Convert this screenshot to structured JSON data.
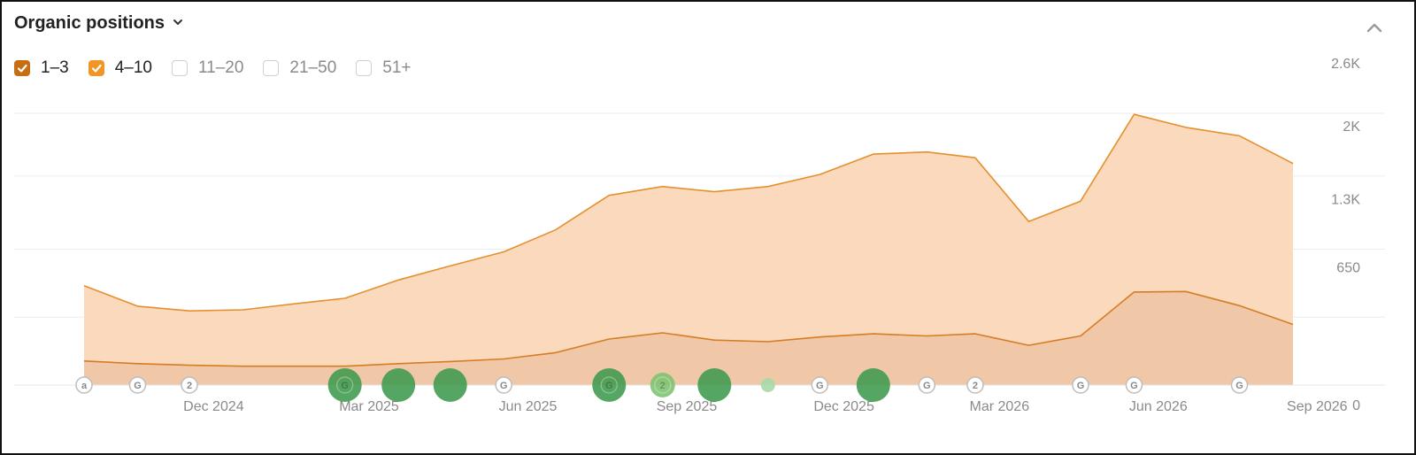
{
  "header": {
    "title": "Organic positions"
  },
  "filters": [
    {
      "label": "1–3",
      "checked": true,
      "color": "#c86e12"
    },
    {
      "label": "4–10",
      "checked": true,
      "color": "#f29527"
    },
    {
      "label": "11–20",
      "checked": false
    },
    {
      "label": "21–50",
      "checked": false
    },
    {
      "label": "51+",
      "checked": false
    }
  ],
  "icons": {
    "title_dropdown": "chevron-down-icon",
    "collapse": "chevron-up-icon"
  },
  "colors": {
    "area_4_10": "#fbd9bc",
    "area_1_3": "#f0c8a8",
    "line": "#e5902f",
    "marker_green": "#3d9a4d"
  },
  "chart_data": {
    "type": "area",
    "stacked": true,
    "x": [
      "2024-10-01",
      "2024-11-01",
      "2024-12-01",
      "2025-01-01",
      "2025-02-01",
      "2025-03-01",
      "2025-04-01",
      "2025-05-01",
      "2025-06-01",
      "2025-07-01",
      "2025-08-01",
      "2025-09-01",
      "2025-10-01",
      "2025-11-01",
      "2025-12-01",
      "2026-01-01",
      "2026-02-01",
      "2026-03-01",
      "2026-04-01",
      "2026-05-01",
      "2026-06-01",
      "2026-07-01",
      "2026-08-01",
      "2026-09-01"
    ],
    "series": [
      {
        "name": "1–3",
        "values": [
          230,
          205,
          190,
          180,
          180,
          180,
          205,
          225,
          250,
          310,
          440,
          500,
          430,
          415,
          460,
          490,
          470,
          490,
          380,
          470,
          890,
          895,
          760,
          580
        ]
      },
      {
        "name": "4–10",
        "values": [
          720,
          550,
          520,
          540,
          600,
          650,
          800,
          915,
          1025,
          1175,
          1375,
          1400,
          1420,
          1485,
          1555,
          1720,
          1760,
          1685,
          1185,
          1290,
          1700,
          1570,
          1625,
          1540
        ]
      }
    ],
    "x_ticks": [
      "Dec 2024",
      "Mar 2025",
      "Jun 2025",
      "Sep 2025",
      "Dec 2025",
      "Mar 2026",
      "Jun 2026",
      "Sep 2026"
    ],
    "y_ticks": [
      "0",
      "650",
      "1.3K",
      "2K",
      "2.6K"
    ],
    "ylim": [
      0,
      2600
    ],
    "grid": true,
    "y_axis_position": "right",
    "event_markers": [
      {
        "date": "2024-10-01",
        "label": "a",
        "kind": "letter"
      },
      {
        "date": "2024-11-01",
        "label": "G",
        "kind": "letter"
      },
      {
        "date": "2024-12-01",
        "label": "2",
        "kind": "letter"
      },
      {
        "date": "2025-03-01",
        "label": "G",
        "kind": "bubble",
        "size": "large"
      },
      {
        "date": "2025-04-01",
        "kind": "bubble",
        "size": "large"
      },
      {
        "date": "2025-05-01",
        "kind": "bubble",
        "size": "large"
      },
      {
        "date": "2025-06-01",
        "label": "G",
        "kind": "letter"
      },
      {
        "date": "2025-08-01",
        "label": "G",
        "kind": "bubble",
        "size": "large"
      },
      {
        "date": "2025-09-01",
        "label": "2",
        "kind": "bubble",
        "size": "medium"
      },
      {
        "date": "2025-10-01",
        "kind": "bubble",
        "size": "large"
      },
      {
        "date": "2025-11-01",
        "kind": "bubble",
        "size": "small"
      },
      {
        "date": "2025-12-01",
        "label": "G",
        "kind": "letter"
      },
      {
        "date": "2026-01-01",
        "kind": "bubble",
        "size": "large"
      },
      {
        "date": "2026-02-01",
        "label": "G",
        "kind": "letter"
      },
      {
        "date": "2026-03-01",
        "label": "2",
        "kind": "letter"
      },
      {
        "date": "2026-05-01",
        "label": "G",
        "kind": "letter"
      },
      {
        "date": "2026-06-01",
        "label": "G",
        "kind": "letter"
      },
      {
        "date": "2026-08-01",
        "label": "G",
        "kind": "letter"
      }
    ]
  }
}
